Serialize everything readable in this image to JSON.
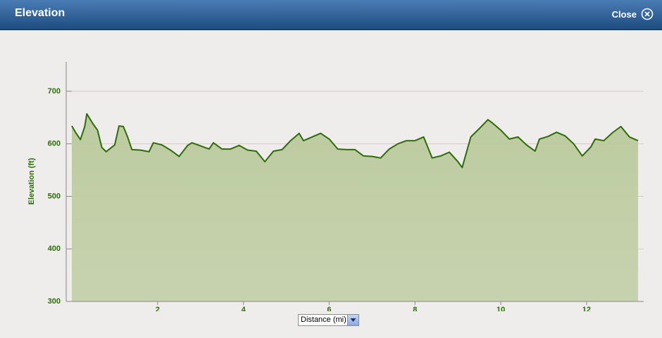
{
  "header": {
    "title": "Elevation",
    "close": "Close"
  },
  "chart_data": {
    "type": "area",
    "y_label": "Elevation (ft)",
    "x_label": "Distance (mi)",
    "x": [
      0,
      0.1,
      0.2,
      0.3,
      0.35,
      0.5,
      0.6,
      0.7,
      0.8,
      1.0,
      1.1,
      1.2,
      1.3,
      1.4,
      1.6,
      1.8,
      1.9,
      2.1,
      2.3,
      2.5,
      2.7,
      2.8,
      3.0,
      3.2,
      3.3,
      3.5,
      3.7,
      3.9,
      4.1,
      4.3,
      4.5,
      4.7,
      4.9,
      5.1,
      5.3,
      5.4,
      5.6,
      5.8,
      6.0,
      6.2,
      6.4,
      6.6,
      6.8,
      7.0,
      7.2,
      7.4,
      7.6,
      7.8,
      8.0,
      8.2,
      8.4,
      8.6,
      8.8,
      9.0,
      9.1,
      9.3,
      9.5,
      9.7,
      9.8,
      10.0,
      10.2,
      10.4,
      10.6,
      10.8,
      10.9,
      11.1,
      11.3,
      11.5,
      11.7,
      11.9,
      12.1,
      12.2,
      12.4,
      12.6,
      12.8,
      13.0,
      13.2
    ],
    "values": [
      634,
      620,
      608,
      633,
      657,
      637,
      626,
      593,
      585,
      598,
      634,
      633,
      613,
      589,
      588,
      585,
      602,
      598,
      588,
      576,
      597,
      602,
      596,
      590,
      602,
      590,
      590,
      597,
      588,
      586,
      566,
      586,
      589,
      606,
      620,
      606,
      613,
      620,
      609,
      590,
      589,
      589,
      577,
      576,
      573,
      590,
      600,
      606,
      606,
      613,
      573,
      577,
      584,
      566,
      555,
      613,
      629,
      646,
      640,
      626,
      609,
      613,
      598,
      586,
      609,
      614,
      622,
      615,
      600,
      577,
      594,
      609,
      606,
      621,
      633,
      613,
      606
    ],
    "line_color": "#2e6b0a",
    "fill_color": "#b9c99c",
    "xlim": [
      0,
      13.2
    ],
    "xticks": [
      2,
      4,
      6,
      8,
      10,
      12
    ],
    "ylim": [
      300,
      756
    ],
    "yticks": [
      300,
      400,
      500,
      600,
      700
    ],
    "grid": true
  }
}
